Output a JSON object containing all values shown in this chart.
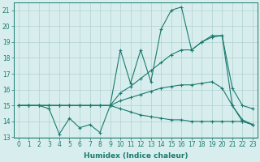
{
  "xlabel": "Humidex (Indice chaleur)",
  "xlim": [
    -0.5,
    23.5
  ],
  "ylim": [
    13,
    21.5
  ],
  "yticks": [
    13,
    14,
    15,
    16,
    17,
    18,
    19,
    20,
    21
  ],
  "xticks": [
    0,
    1,
    2,
    3,
    4,
    5,
    6,
    7,
    8,
    9,
    10,
    11,
    12,
    13,
    14,
    15,
    16,
    17,
    18,
    19,
    20,
    21,
    22,
    23
  ],
  "bg_color": "#d8eeee",
  "grid_color": "#b0d0d0",
  "line_color": "#1a7a6e",
  "series": {
    "volatile_line": {
      "x": [
        0,
        1,
        2,
        3,
        4,
        5,
        6,
        7,
        8,
        9,
        10,
        11,
        12,
        13,
        14,
        15,
        16,
        17,
        18,
        19,
        20,
        21,
        22,
        23
      ],
      "y": [
        15.0,
        15.0,
        15.0,
        14.8,
        13.2,
        14.2,
        13.6,
        13.8,
        13.3,
        15.0,
        18.5,
        16.4,
        18.5,
        16.5,
        19.8,
        21.0,
        21.2,
        18.5,
        19.0,
        19.4,
        19.4,
        15.0,
        14.1,
        13.8
      ]
    },
    "upper_smooth": {
      "x": [
        0,
        1,
        2,
        3,
        4,
        5,
        6,
        7,
        8,
        9,
        10,
        11,
        12,
        13,
        14,
        15,
        16,
        17,
        18,
        19,
        20,
        21,
        22,
        23
      ],
      "y": [
        15.0,
        15.0,
        15.0,
        15.0,
        15.0,
        15.0,
        15.0,
        15.0,
        15.0,
        15.0,
        15.8,
        16.2,
        16.7,
        17.2,
        17.7,
        18.2,
        18.5,
        18.5,
        19.0,
        19.3,
        19.4,
        16.1,
        15.0,
        14.8
      ]
    },
    "lower_smooth": {
      "x": [
        0,
        1,
        2,
        3,
        4,
        5,
        6,
        7,
        8,
        9,
        10,
        11,
        12,
        13,
        14,
        15,
        16,
        17,
        18,
        19,
        20,
        21,
        22,
        23
      ],
      "y": [
        15.0,
        15.0,
        15.0,
        15.0,
        15.0,
        15.0,
        15.0,
        15.0,
        15.0,
        15.0,
        15.3,
        15.5,
        15.7,
        15.9,
        16.1,
        16.2,
        16.3,
        16.3,
        16.4,
        16.5,
        16.1,
        15.0,
        14.0,
        13.8
      ]
    },
    "bottom_flat": {
      "x": [
        0,
        1,
        2,
        3,
        4,
        5,
        6,
        7,
        8,
        9,
        10,
        11,
        12,
        13,
        14,
        15,
        16,
        17,
        18,
        19,
        20,
        21,
        22,
        23
      ],
      "y": [
        15.0,
        15.0,
        15.0,
        15.0,
        15.0,
        15.0,
        15.0,
        15.0,
        15.0,
        15.0,
        14.8,
        14.6,
        14.4,
        14.3,
        14.2,
        14.1,
        14.1,
        14.0,
        14.0,
        14.0,
        14.0,
        14.0,
        14.0,
        13.8
      ]
    }
  },
  "markersize": 2.5
}
